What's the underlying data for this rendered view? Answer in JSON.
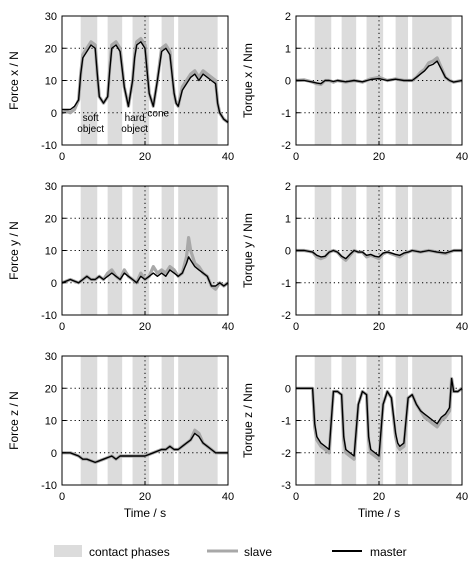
{
  "chart_data": [
    {
      "type": "line",
      "ylabel": "Force x / N",
      "xlabel": "",
      "xlim": [
        0,
        40
      ],
      "ylim": [
        -10,
        30
      ],
      "yticks": [
        "30",
        "20",
        "10",
        "0",
        "-10"
      ],
      "xticks": [
        "0",
        "20",
        "40"
      ],
      "annotations": [
        {
          "lines": [
            "soft",
            "object"
          ],
          "x": 6.9,
          "y": -2.5
        },
        {
          "lines": [
            "hard",
            "object"
          ],
          "x": 17.5,
          "y": -2.5
        },
        {
          "lines": [
            "cone"
          ],
          "x": 23.2,
          "y": -1.2
        }
      ],
      "series": [
        {
          "name": "slave",
          "color": "#a8a8a8",
          "x": [
            0,
            1,
            2,
            3,
            4,
            4.5,
            5,
            6,
            7,
            8,
            8.5,
            9,
            10,
            11,
            11.5,
            12,
            13,
            14,
            15,
            16,
            17,
            17.5,
            18,
            19,
            20,
            21,
            22,
            23,
            24,
            25,
            26,
            27,
            27.5,
            28,
            29,
            30,
            31,
            32,
            33,
            34,
            35,
            36,
            37,
            37.5,
            38,
            39,
            40
          ],
          "y": [
            0,
            0.5,
            0,
            1,
            4,
            12,
            18,
            20,
            22,
            21,
            12,
            5,
            3,
            5,
            14,
            21,
            22,
            20,
            8,
            2,
            10,
            18,
            22,
            23,
            21,
            6,
            2,
            10,
            20,
            21,
            19,
            6,
            3,
            2,
            8,
            10,
            12,
            13,
            11,
            13,
            12,
            11,
            10,
            3,
            0,
            -2,
            -3
          ]
        },
        {
          "name": "master",
          "color": "#000000",
          "x": [
            0,
            1,
            2,
            3,
            4,
            4.5,
            5,
            6,
            7,
            8,
            8.5,
            9,
            10,
            11,
            11.5,
            12,
            13,
            14,
            15,
            16,
            17,
            17.5,
            18,
            19,
            20,
            21,
            22,
            23,
            24,
            25,
            26,
            27,
            27.5,
            28,
            29,
            30,
            31,
            32,
            33,
            34,
            35,
            36,
            37,
            37.5,
            38,
            39,
            40
          ],
          "y": [
            1,
            1,
            1,
            2,
            4,
            12,
            17,
            19,
            21,
            20,
            12,
            5,
            3,
            5,
            13,
            20,
            21,
            19,
            8,
            2,
            10,
            17,
            21,
            22,
            20,
            6,
            2,
            10,
            19,
            20,
            18,
            6,
            3,
            2,
            7,
            9,
            11,
            12,
            10,
            12,
            11,
            10,
            9,
            3,
            0,
            -2,
            -3
          ]
        }
      ]
    },
    {
      "type": "line",
      "ylabel": "Torque x / Nm",
      "xlabel": "",
      "xlim": [
        0,
        40
      ],
      "ylim": [
        -2,
        2
      ],
      "yticks": [
        "2",
        "1",
        "0",
        "-1",
        "-2"
      ],
      "xticks": [
        "0",
        "20",
        "40"
      ],
      "annotations": [],
      "series": [
        {
          "name": "slave",
          "color": "#a8a8a8",
          "x": [
            0,
            2,
            4,
            5,
            6,
            7,
            8,
            9,
            10,
            12,
            14,
            16,
            18,
            20,
            22,
            24,
            26,
            28,
            29,
            30,
            31,
            32,
            33,
            34,
            35,
            36,
            37,
            38,
            40
          ],
          "y": [
            0,
            0.02,
            -0.05,
            -0.1,
            -0.12,
            0,
            0,
            -0.05,
            0,
            -0.05,
            0,
            -0.05,
            0.05,
            0.1,
            0,
            0.05,
            0,
            0,
            0.1,
            0.25,
            0.35,
            0.55,
            0.6,
            0.7,
            0.4,
            0.1,
            0,
            -0.05,
            0
          ]
        },
        {
          "name": "master",
          "color": "#000000",
          "x": [
            0,
            2,
            4,
            5,
            6,
            7,
            8,
            9,
            10,
            12,
            14,
            16,
            18,
            20,
            22,
            24,
            26,
            28,
            29,
            30,
            31,
            32,
            33,
            34,
            35,
            36,
            37,
            38,
            40
          ],
          "y": [
            0,
            0,
            -0.05,
            -0.08,
            -0.1,
            0,
            0,
            -0.03,
            0,
            -0.04,
            0,
            -0.04,
            0.03,
            0.06,
            0,
            0.04,
            0,
            0,
            0.1,
            0.2,
            0.3,
            0.45,
            0.5,
            0.6,
            0.35,
            0.1,
            0,
            -0.05,
            0
          ]
        }
      ]
    },
    {
      "type": "line",
      "ylabel": "Force y / N",
      "xlabel": "",
      "xlim": [
        0,
        40
      ],
      "ylim": [
        -10,
        30
      ],
      "yticks": [
        "30",
        "20",
        "10",
        "0",
        "-10"
      ],
      "xticks": [
        "0",
        "20",
        "40"
      ],
      "annotations": [],
      "series": [
        {
          "name": "slave",
          "color": "#a8a8a8",
          "x": [
            0,
            2,
            4,
            5,
            6,
            7,
            8,
            9,
            10,
            11,
            12,
            13,
            14,
            15,
            16,
            17,
            18,
            19,
            20,
            21,
            22,
            23,
            24,
            25,
            26,
            27,
            28,
            29,
            30,
            30.5,
            31,
            32,
            33,
            34,
            35,
            36,
            37,
            38,
            39,
            40
          ],
          "y": [
            0,
            1,
            0,
            1,
            2,
            1,
            1,
            2,
            1,
            3,
            4,
            2,
            1,
            4,
            2,
            1,
            0,
            3,
            1,
            2,
            5,
            3,
            4,
            3,
            5,
            4,
            2,
            3,
            8,
            14,
            10,
            6,
            5,
            3,
            2,
            -1,
            -2,
            0,
            -1,
            0
          ]
        },
        {
          "name": "master",
          "color": "#000000",
          "x": [
            0,
            2,
            4,
            5,
            6,
            7,
            8,
            9,
            10,
            11,
            12,
            13,
            14,
            15,
            16,
            17,
            18,
            19,
            20,
            21,
            22,
            23,
            24,
            25,
            26,
            27,
            28,
            29,
            30,
            30.5,
            31,
            32,
            33,
            34,
            35,
            36,
            37,
            38,
            39,
            40
          ],
          "y": [
            0,
            1,
            0,
            1,
            2,
            1,
            1,
            2,
            1,
            2,
            3,
            2,
            1,
            3,
            2,
            1,
            0,
            2,
            1,
            2,
            3,
            2,
            3,
            2,
            4,
            3,
            2,
            3,
            6,
            8,
            7,
            5,
            4,
            3,
            2,
            -1,
            -1,
            0,
            -1,
            0
          ]
        }
      ]
    },
    {
      "type": "line",
      "ylabel": "Torque y / Nm",
      "xlabel": "",
      "xlim": [
        0,
        40
      ],
      "ylim": [
        -2,
        2
      ],
      "yticks": [
        "2",
        "1",
        "0",
        "-1",
        "-2"
      ],
      "xticks": [
        "0",
        "20",
        "40"
      ],
      "annotations": [],
      "series": [
        {
          "name": "slave",
          "color": "#a8a8a8",
          "x": [
            0,
            2,
            4,
            5,
            6,
            7,
            8,
            9,
            10,
            11,
            12,
            13,
            14,
            15,
            16,
            17,
            18,
            19,
            20,
            21,
            22,
            23,
            24,
            25,
            26,
            27,
            28,
            30,
            32,
            34,
            36,
            38,
            40
          ],
          "y": [
            0,
            0,
            -0.05,
            -0.2,
            -0.25,
            -0.2,
            -0.05,
            0,
            -0.05,
            -0.2,
            -0.3,
            -0.15,
            0,
            -0.05,
            -0.05,
            -0.2,
            -0.15,
            -0.2,
            -0.25,
            -0.1,
            -0.05,
            -0.1,
            -0.15,
            -0.2,
            -0.1,
            -0.05,
            0,
            -0.05,
            0,
            -0.05,
            -0.1,
            0,
            0
          ]
        },
        {
          "name": "master",
          "color": "#000000",
          "x": [
            0,
            2,
            4,
            5,
            6,
            7,
            8,
            9,
            10,
            11,
            12,
            13,
            14,
            15,
            16,
            17,
            18,
            19,
            20,
            21,
            22,
            23,
            24,
            25,
            26,
            27,
            28,
            30,
            32,
            34,
            36,
            38,
            40
          ],
          "y": [
            0,
            0,
            -0.05,
            -0.15,
            -0.2,
            -0.18,
            -0.05,
            0,
            -0.05,
            -0.18,
            -0.25,
            -0.12,
            0,
            -0.05,
            -0.05,
            -0.15,
            -0.12,
            -0.18,
            -0.2,
            -0.08,
            -0.05,
            -0.08,
            -0.12,
            -0.15,
            -0.08,
            -0.05,
            0,
            -0.05,
            0,
            -0.05,
            -0.08,
            0,
            0
          ]
        }
      ]
    },
    {
      "type": "line",
      "ylabel": "Force z / N",
      "xlabel": "Time / s",
      "xlim": [
        0,
        40
      ],
      "ylim": [
        -10,
        30
      ],
      "yticks": [
        "30",
        "20",
        "10",
        "0",
        "-10"
      ],
      "xticks": [
        "0",
        "20",
        "40"
      ],
      "annotations": [],
      "series": [
        {
          "name": "slave",
          "color": "#a8a8a8",
          "x": [
            0,
            2,
            4,
            5,
            6,
            8,
            10,
            12,
            13,
            14,
            16,
            18,
            20,
            22,
            24,
            25,
            26,
            27,
            28,
            29,
            30,
            31,
            32,
            33,
            34,
            35,
            36,
            37,
            38,
            40
          ],
          "y": [
            0,
            0,
            -1,
            -2,
            -2,
            -3,
            -2,
            -1,
            -2,
            -1,
            -1,
            -1,
            -1,
            0,
            1,
            1,
            2,
            1,
            1,
            2,
            3,
            4,
            7,
            6,
            3,
            2,
            1,
            0,
            0,
            0
          ]
        },
        {
          "name": "master",
          "color": "#000000",
          "x": [
            0,
            2,
            4,
            5,
            6,
            8,
            10,
            12,
            13,
            14,
            16,
            18,
            20,
            22,
            24,
            25,
            26,
            27,
            28,
            29,
            30,
            31,
            32,
            33,
            34,
            35,
            36,
            37,
            38,
            40
          ],
          "y": [
            0,
            0,
            -1,
            -2,
            -2,
            -3,
            -2,
            -1,
            -2,
            -1,
            -1,
            -1,
            -1,
            0,
            1,
            1,
            2,
            1,
            1,
            2,
            3,
            4,
            6,
            5,
            3,
            2,
            1,
            0,
            0,
            0
          ]
        }
      ]
    },
    {
      "type": "line",
      "ylabel": "Torque z / Nm",
      "xlabel": "Time / s",
      "xlim": [
        0,
        40
      ],
      "ylim": [
        -3,
        1
      ],
      "yticks": [
        "0",
        "-1",
        "-2",
        "-3"
      ],
      "xticks": [
        "0",
        "20",
        "40"
      ],
      "annotations": [],
      "series": [
        {
          "name": "slave",
          "color": "#a8a8a8",
          "x": [
            0,
            2,
            4,
            4.5,
            5,
            6,
            7,
            8,
            8.5,
            9,
            10,
            11,
            11.5,
            12,
            13,
            14,
            15,
            16,
            17,
            17.5,
            18,
            19,
            20,
            21,
            22,
            23,
            24,
            24.5,
            25,
            26,
            27,
            28,
            29,
            30,
            31,
            32,
            33,
            34,
            35,
            36,
            37,
            37.5,
            38,
            39,
            40
          ],
          "y": [
            0,
            0,
            0,
            -1.2,
            -1.6,
            -1.8,
            -1.9,
            -2.0,
            -1.0,
            -0.1,
            -0.1,
            -0.2,
            -1.6,
            -2.0,
            -2.1,
            -2.2,
            -0.5,
            -0.1,
            -0.2,
            -1.6,
            -2.0,
            -2.1,
            -2.2,
            -0.5,
            -0.1,
            -0.3,
            -1.5,
            -1.8,
            -1.9,
            -1.8,
            -0.3,
            -0.2,
            -0.5,
            -0.7,
            -0.9,
            -1.0,
            -1.1,
            -1.2,
            -1.0,
            -0.9,
            -0.7,
            0.3,
            -0.1,
            -0.1,
            0
          ]
        },
        {
          "name": "master",
          "color": "#000000",
          "x": [
            0,
            2,
            4,
            4.5,
            5,
            6,
            7,
            8,
            8.5,
            9,
            10,
            11,
            11.5,
            12,
            13,
            14,
            15,
            16,
            17,
            17.5,
            18,
            19,
            20,
            21,
            22,
            23,
            24,
            24.5,
            25,
            26,
            27,
            28,
            29,
            30,
            31,
            32,
            33,
            34,
            35,
            36,
            37,
            37.5,
            38,
            39,
            40
          ],
          "y": [
            0,
            0,
            0,
            -1.1,
            -1.5,
            -1.7,
            -1.8,
            -1.9,
            -1.0,
            -0.1,
            -0.1,
            -0.2,
            -1.5,
            -1.9,
            -2.0,
            -2.1,
            -0.5,
            -0.1,
            -0.2,
            -1.5,
            -1.9,
            -2.0,
            -2.1,
            -0.5,
            -0.1,
            -0.3,
            -1.4,
            -1.7,
            -1.8,
            -1.7,
            -0.3,
            -0.2,
            -0.5,
            -0.7,
            -0.8,
            -0.9,
            -1.0,
            -1.1,
            -0.9,
            -0.8,
            -0.6,
            0.3,
            -0.1,
            -0.1,
            0
          ]
        }
      ]
    }
  ],
  "contact_phases": [
    [
      4.5,
      8.5
    ],
    [
      11,
      14.5
    ],
    [
      17,
      21
    ],
    [
      24,
      27
    ],
    [
      28,
      37.5
    ]
  ],
  "colors": {
    "contact": "#dcdcdc",
    "slave": "#a8a8a8",
    "master": "#000000"
  },
  "legend": {
    "contact": "contact phases",
    "slave": "slave",
    "master": "master"
  }
}
